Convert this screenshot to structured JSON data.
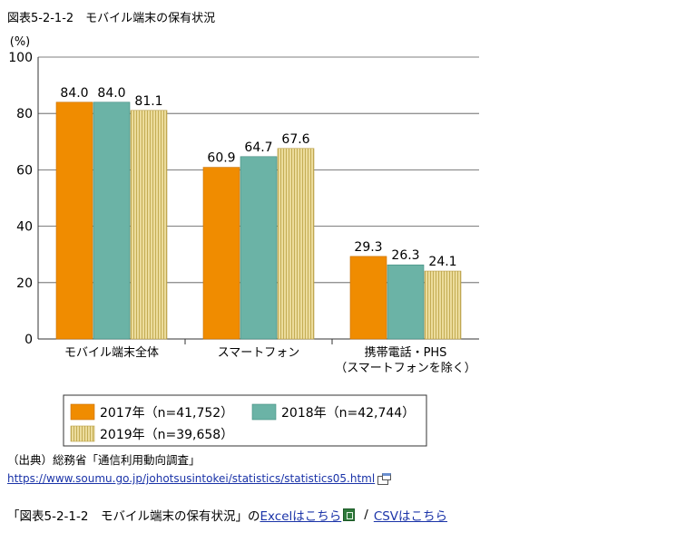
{
  "figure_title": "図表5-2-1-2　モバイル端末の保有状況",
  "source_label": "（出典）総務省「通信利用動向調査」",
  "source_url": "https://www.soumu.go.jp/johotsusintokei/statistics/statistics05.html",
  "footer": {
    "prefix": "「図表5-2-1-2　モバイル端末の保有状況」の",
    "excel_link": "Excelはこちら",
    "separator": "/",
    "csv_link": "CSVはこちら"
  },
  "colors": {
    "s2017": "#f08c00",
    "s2018": "#6bb3a6",
    "s2019": "#e9d795",
    "s2019_stripe": "#c8b25a",
    "axis": "#333333",
    "grid": "#555555"
  },
  "icons": [
    "new-window-icon",
    "excel-file-icon"
  ],
  "chart_data": {
    "type": "bar",
    "title": "図表5-2-1-2　モバイル端末の保有状況",
    "ylabel": "(%)",
    "xlabel": "",
    "ylim": [
      0,
      100
    ],
    "yticks": [
      0,
      20,
      40,
      60,
      80,
      100
    ],
    "grid": true,
    "categories": [
      [
        "モバイル端末全体"
      ],
      [
        "スマートフォン"
      ],
      [
        "携帯電話・PHS",
        "（スマートフォンを除く）"
      ]
    ],
    "series": [
      {
        "name": "2017年（n=41,752）",
        "values": [
          84.0,
          60.9,
          29.3
        ]
      },
      {
        "name": "2018年（n=42,744）",
        "values": [
          84.0,
          64.7,
          26.3
        ]
      },
      {
        "name": "2019年（n=39,658）",
        "values": [
          81.1,
          67.6,
          24.1
        ]
      }
    ],
    "legend_position": "bottom"
  }
}
